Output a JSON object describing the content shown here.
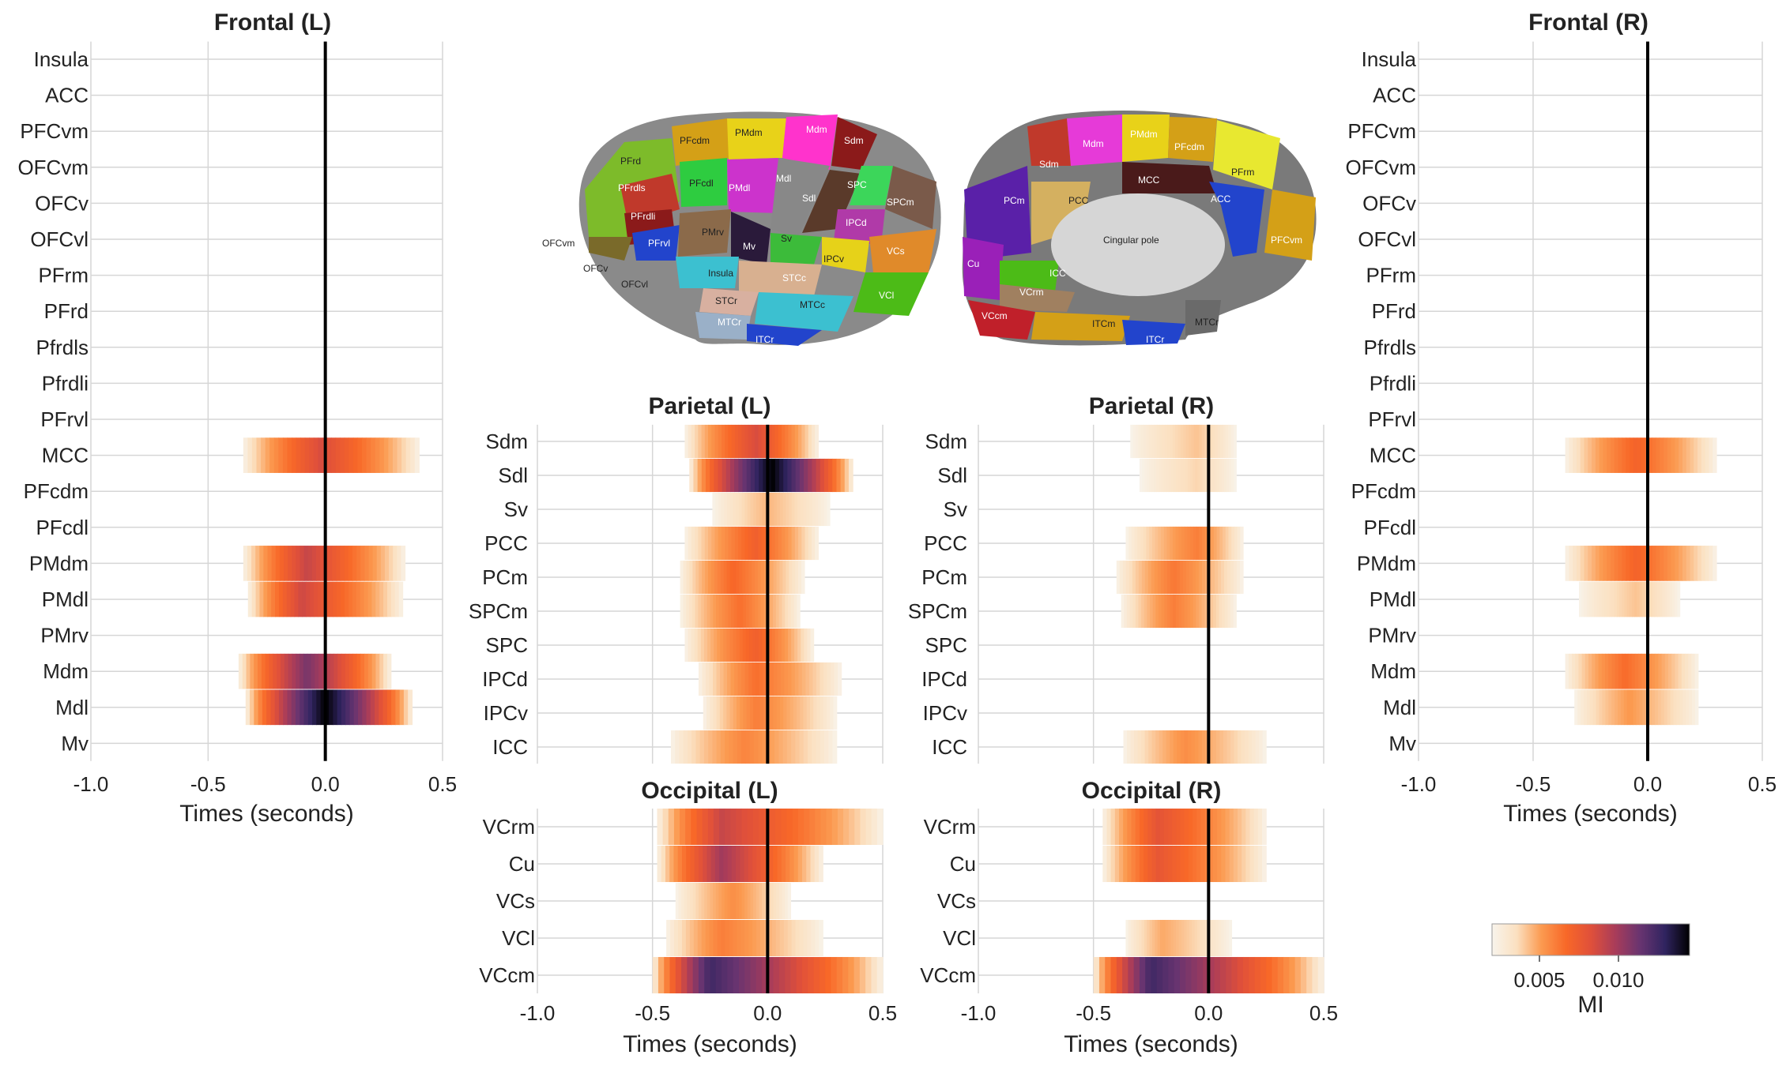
{
  "chart_data": {
    "type": "heatmap",
    "colorbar": {
      "label": "MI",
      "ticks": [
        "0.005",
        "0.010"
      ],
      "tick_values": [
        0.005,
        0.01
      ],
      "range": [
        0.002,
        0.0145
      ],
      "colors": [
        "#f8f4ec",
        "#fbe0c0",
        "#fb9a50",
        "#f86828",
        "#e0503a",
        "#a83c5a",
        "#683470",
        "#302460",
        "#000000"
      ]
    },
    "xticks": [
      "-1.0",
      "-0.5",
      "0.0",
      "0.5"
    ],
    "xtick_values": [
      -1.0,
      -0.5,
      0.0,
      0.5
    ],
    "xlim": [
      -1.0,
      0.5
    ],
    "xlabel": "Times (seconds)",
    "panels": [
      {
        "id": "frontal-l",
        "title": "Frontal (L)",
        "rows": [
          "Insula",
          "ACC",
          "PFCvm",
          "OFCvm",
          "OFCv",
          "OFCvl",
          "PFrm",
          "PFrd",
          "Pfrdls",
          "Pfrdli",
          "PFrvl",
          "MCC",
          "PFcdm",
          "PFcdl",
          "PMdm",
          "PMdl",
          "PMrv",
          "Mdm",
          "Mdl",
          "Mv"
        ],
        "active": [
          {
            "row": "MCC",
            "start": -0.35,
            "end": 0.4,
            "peak_t": -0.02,
            "peak": 0.0085
          },
          {
            "row": "PMdm",
            "start": -0.35,
            "end": 0.34,
            "peak_t": -0.08,
            "peak": 0.009
          },
          {
            "row": "PMdl",
            "start": -0.33,
            "end": 0.33,
            "peak_t": -0.1,
            "peak": 0.0088
          },
          {
            "row": "Mdm",
            "start": -0.37,
            "end": 0.28,
            "peak_t": -0.08,
            "peak": 0.011
          },
          {
            "row": "Mdl",
            "start": -0.34,
            "end": 0.37,
            "peak_t": 0.0,
            "peak": 0.0145
          }
        ]
      },
      {
        "id": "frontal-r",
        "title": "Frontal (R)",
        "rows": [
          "Insula",
          "ACC",
          "PFCvm",
          "OFCvm",
          "OFCv",
          "OFCvl",
          "PFrm",
          "PFrd",
          "Pfrdls",
          "Pfrdli",
          "PFrvl",
          "MCC",
          "PFcdm",
          "PFcdl",
          "PMdm",
          "PMdl",
          "PMrv",
          "Mdm",
          "Mdl",
          "Mv"
        ],
        "active": [
          {
            "row": "MCC",
            "start": -0.36,
            "end": 0.3,
            "peak_t": -0.05,
            "peak": 0.007
          },
          {
            "row": "PMdm",
            "start": -0.36,
            "end": 0.3,
            "peak_t": -0.05,
            "peak": 0.007
          },
          {
            "row": "PMdl",
            "start": -0.3,
            "end": 0.14,
            "peak_t": -0.05,
            "peak": 0.0042
          },
          {
            "row": "Mdm",
            "start": -0.36,
            "end": 0.22,
            "peak_t": -0.1,
            "peak": 0.0066
          },
          {
            "row": "Mdl",
            "start": -0.32,
            "end": 0.22,
            "peak_t": -0.08,
            "peak": 0.0052
          }
        ]
      },
      {
        "id": "parietal-l",
        "title": "Parietal (L)",
        "rows": [
          "Sdm",
          "Sdl",
          "Sv",
          "PCC",
          "PCm",
          "SPCm",
          "SPC",
          "IPCd",
          "IPCv",
          "ICC"
        ],
        "active": [
          {
            "row": "Sdm",
            "start": -0.36,
            "end": 0.22,
            "peak_t": -0.05,
            "peak": 0.0085
          },
          {
            "row": "Sdl",
            "start": -0.34,
            "end": 0.37,
            "peak_t": 0.02,
            "peak": 0.0145
          },
          {
            "row": "Sv",
            "start": -0.24,
            "end": 0.27,
            "peak_t": 0.0,
            "peak": 0.0045
          },
          {
            "row": "PCC",
            "start": -0.36,
            "end": 0.22,
            "peak_t": -0.05,
            "peak": 0.0072
          },
          {
            "row": "PCm",
            "start": -0.38,
            "end": 0.16,
            "peak_t": -0.15,
            "peak": 0.0068
          },
          {
            "row": "SPCm",
            "start": -0.38,
            "end": 0.14,
            "peak_t": -0.12,
            "peak": 0.0065
          },
          {
            "row": "SPC",
            "start": -0.36,
            "end": 0.2,
            "peak_t": -0.05,
            "peak": 0.0072
          },
          {
            "row": "IPCd",
            "start": -0.3,
            "end": 0.32,
            "peak_t": -0.05,
            "peak": 0.0065
          },
          {
            "row": "IPCv",
            "start": -0.28,
            "end": 0.3,
            "peak_t": -0.05,
            "peak": 0.006
          },
          {
            "row": "ICC",
            "start": -0.42,
            "end": 0.3,
            "peak_t": -0.1,
            "peak": 0.0058
          }
        ]
      },
      {
        "id": "parietal-r",
        "title": "Parietal (R)",
        "rows": [
          "Sdm",
          "Sdl",
          "Sv",
          "PCC",
          "PCm",
          "SPCm",
          "SPC",
          "IPCd",
          "IPCv",
          "ICC"
        ],
        "active": [
          {
            "row": "Sdm",
            "start": -0.34,
            "end": 0.12,
            "peak_t": -0.05,
            "peak": 0.0042
          },
          {
            "row": "Sdl",
            "start": -0.3,
            "end": 0.12,
            "peak_t": -0.05,
            "peak": 0.0038
          },
          {
            "row": "PCC",
            "start": -0.36,
            "end": 0.15,
            "peak_t": -0.05,
            "peak": 0.006
          },
          {
            "row": "PCm",
            "start": -0.4,
            "end": 0.15,
            "peak_t": -0.15,
            "peak": 0.0062
          },
          {
            "row": "SPCm",
            "start": -0.38,
            "end": 0.12,
            "peak_t": -0.15,
            "peak": 0.006
          },
          {
            "row": "ICC",
            "start": -0.37,
            "end": 0.25,
            "peak_t": -0.1,
            "peak": 0.0055
          }
        ]
      },
      {
        "id": "occipital-l",
        "title": "Occipital (L)",
        "rows": [
          "VCrm",
          "Cu",
          "VCs",
          "VCl",
          "VCcm"
        ],
        "active": [
          {
            "row": "VCrm",
            "start": -0.48,
            "end": 0.5,
            "peak_t": -0.2,
            "peak": 0.009
          },
          {
            "row": "Cu",
            "start": -0.48,
            "end": 0.24,
            "peak_t": -0.2,
            "peak": 0.01
          },
          {
            "row": "VCs",
            "start": -0.4,
            "end": 0.1,
            "peak_t": -0.15,
            "peak": 0.0055
          },
          {
            "row": "VCl",
            "start": -0.44,
            "end": 0.24,
            "peak_t": -0.2,
            "peak": 0.006
          },
          {
            "row": "VCcm",
            "start": -0.5,
            "end": 0.5,
            "peak_t": -0.25,
            "peak": 0.0125
          }
        ]
      },
      {
        "id": "occipital-r",
        "title": "Occipital (R)",
        "rows": [
          "VCrm",
          "Cu",
          "VCs",
          "VCl",
          "VCcm"
        ],
        "active": [
          {
            "row": "VCrm",
            "start": -0.46,
            "end": 0.25,
            "peak_t": -0.22,
            "peak": 0.008
          },
          {
            "row": "Cu",
            "start": -0.46,
            "end": 0.25,
            "peak_t": -0.22,
            "peak": 0.0078
          },
          {
            "row": "VCl",
            "start": -0.36,
            "end": 0.1,
            "peak_t": -0.2,
            "peak": 0.0048
          },
          {
            "row": "VCcm",
            "start": -0.5,
            "end": 0.5,
            "peak_t": -0.25,
            "peak": 0.0125
          }
        ]
      }
    ]
  },
  "brain": {
    "lateral_labels": [
      "Mdm",
      "Sdm",
      "PFcdm",
      "PMdm",
      "PFrd",
      "Mdl",
      "PFcdl",
      "PMdl",
      "PFrdls",
      "SPC",
      "Sdl",
      "SPCm",
      "PFrdli",
      "IPCd",
      "OFCvm",
      "PFrvl",
      "PMrv",
      "Mv",
      "Sv",
      "OFCv",
      "IPCv",
      "VCs",
      "Insula",
      "STCc",
      "OFCvl",
      "STCr",
      "MTCc",
      "VCl",
      "MTCr",
      "ITCr"
    ],
    "medial_labels": [
      "PMdm",
      "PFcdm",
      "Mdm",
      "PFrm",
      "Sdm",
      "MCC",
      "ACC",
      "PCm",
      "PCC",
      "Cingular pole",
      "PFCvm",
      "Cu",
      "ICC",
      "VCrm",
      "VCcm",
      "ITCm",
      "ITCr",
      "MTCr"
    ]
  }
}
